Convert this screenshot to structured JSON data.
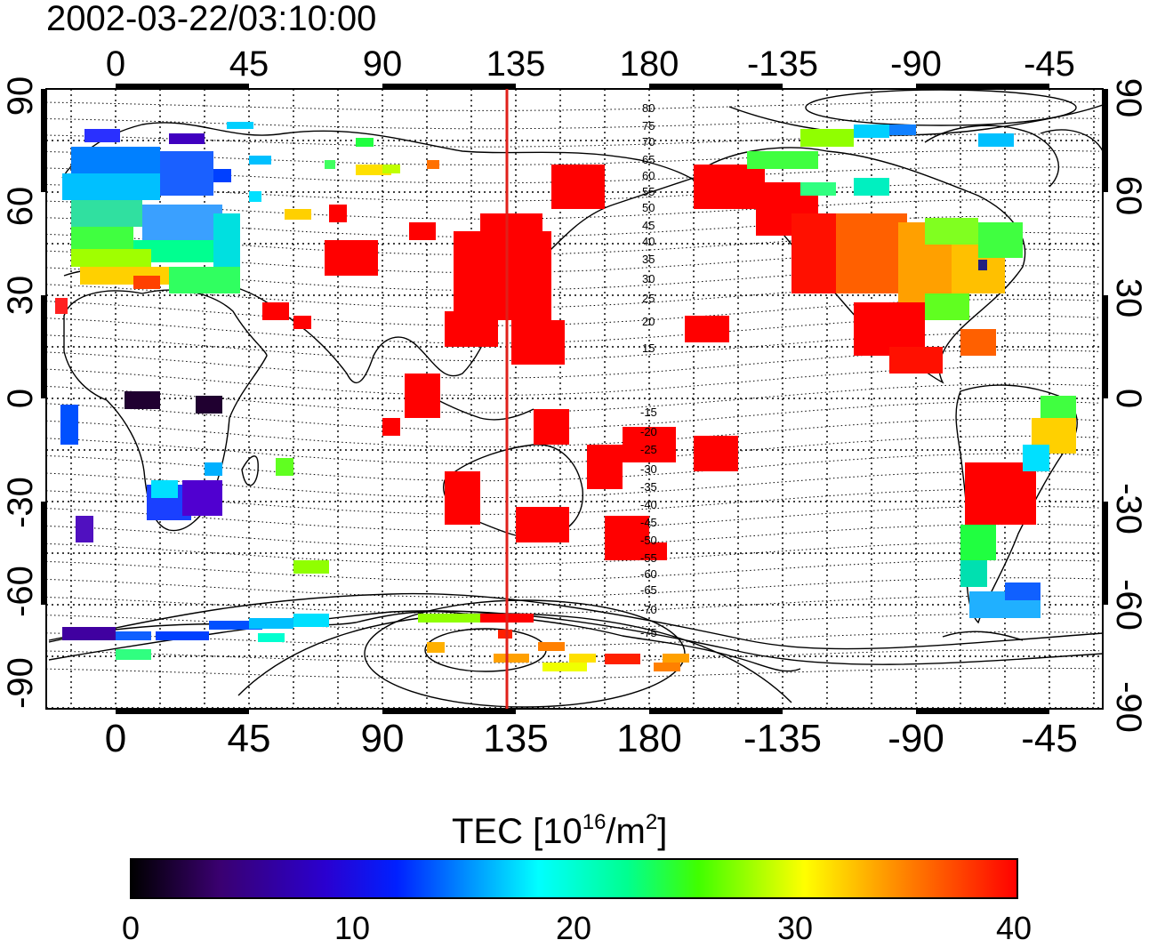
{
  "timestamp": "2002-03-22/03:10:00",
  "map": {
    "lon_ticks_top": [
      "0",
      "45",
      "90",
      "135",
      "180",
      "-135",
      "-90",
      "-45"
    ],
    "lon_ticks_bottom": [
      "0",
      "45",
      "90",
      "135",
      "180",
      "-135",
      "-90",
      "-45"
    ],
    "lat_ticks_left": [
      "90",
      "60",
      "30",
      "0",
      "-30",
      "-60",
      "-90"
    ],
    "lat_ticks_right": [
      "90",
      "60",
      "30",
      "0",
      "-30",
      "-60",
      "-90"
    ],
    "contour_labels_north": [
      "80",
      "75",
      "70",
      "65",
      "60",
      "55",
      "50",
      "45",
      "40",
      "35",
      "30",
      "25",
      "20",
      "15"
    ],
    "contour_labels_south": [
      "-15",
      "-20",
      "-25",
      "-30",
      "-35",
      "-40",
      "-45",
      "-50",
      "-55",
      "-60",
      "-65",
      "-70",
      "-75"
    ],
    "meridian_line_lon": 135,
    "colors": {
      "line": "#e0201a",
      "tec_max": "#ff0000",
      "grid": "#000000"
    }
  },
  "colorbar": {
    "label": "TEC  [10",
    "label_exp1": "16",
    "label_mid": "/m",
    "label_exp2": "2",
    "label_end": "]",
    "ticks": [
      "0",
      "10",
      "20",
      "30",
      "40"
    ],
    "range": [
      0,
      40
    ]
  }
}
